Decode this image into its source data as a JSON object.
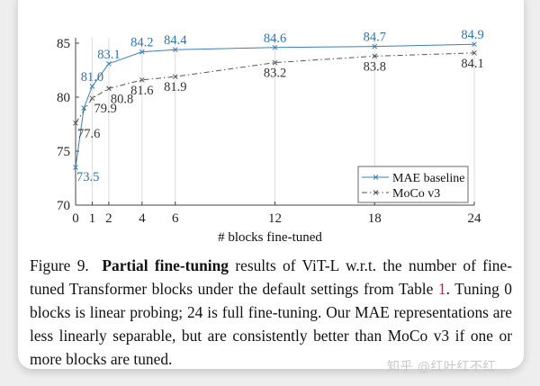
{
  "chart_data": {
    "type": "line",
    "title": "",
    "xlabel": "# blocks fine-tuned",
    "ylabel": "",
    "xlim": [
      0,
      24
    ],
    "ylim": [
      70,
      85.5
    ],
    "xticks": [
      0,
      1,
      2,
      4,
      6,
      12,
      18,
      24
    ],
    "yticks": [
      70,
      75,
      80,
      85
    ],
    "grid": "vertical lines at x ticks",
    "legend_position": "bottom-right",
    "series": [
      {
        "name": "MAE baseline",
        "color": "#3a7fb5",
        "style": "solid",
        "marker": "x",
        "x": [
          0,
          0.5,
          1,
          2,
          4,
          6,
          12,
          18,
          24
        ],
        "y": [
          73.5,
          79.0,
          81.0,
          83.1,
          84.2,
          84.4,
          84.6,
          84.7,
          84.9
        ],
        "labels": [
          "73.5",
          "",
          "81.0",
          "83.1",
          "84.2",
          "84.4",
          "84.6",
          "84.7",
          "84.9"
        ]
      },
      {
        "name": "MoCo v3",
        "color": "#555555",
        "style": "dash-dot",
        "marker": "x",
        "x": [
          0,
          1,
          2,
          4,
          6,
          12,
          18,
          24
        ],
        "y": [
          77.6,
          79.9,
          80.8,
          81.6,
          81.9,
          83.2,
          83.8,
          84.1
        ],
        "labels": [
          "77.6",
          "79.9",
          "80.8",
          "81.6",
          "81.9",
          "83.2",
          "83.8",
          "84.1"
        ]
      }
    ]
  },
  "caption": {
    "figure_label": "Figure 9.",
    "bold": "Partial fine-tuning",
    "text1": " results of ViT-L w.r.t. the number of fine-tuned Transformer blocks under the default settings from Table ",
    "ref": "1",
    "text2": ". Tuning 0 blocks is linear probing; 24 is full fine-tuning. Our MAE representations are less linearly separable, but are consistently better than MoCo v3 if one or more blocks are tuned."
  },
  "watermark": "知乎 @红叶红不红"
}
